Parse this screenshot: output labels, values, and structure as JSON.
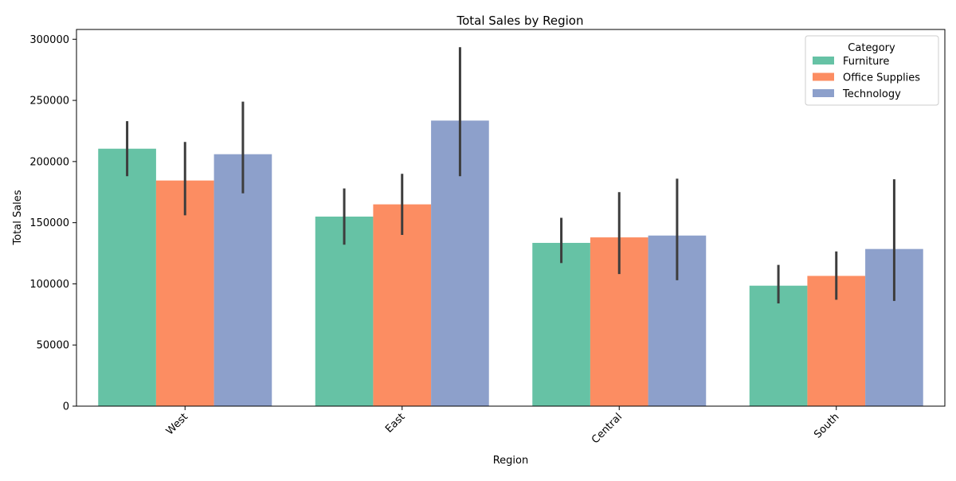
{
  "chart_data": {
    "type": "bar",
    "title": "Total Sales by Region",
    "xlabel": "Region",
    "ylabel": "Total Sales",
    "categories": [
      "West",
      "East",
      "Central",
      "South"
    ],
    "ylim": [
      0,
      308000
    ],
    "yticks": [
      0,
      50000,
      100000,
      150000,
      200000,
      250000,
      300000
    ],
    "series": [
      {
        "name": "Furniture",
        "color": "#66c2a5",
        "values": [
          210500,
          155000,
          133500,
          98500
        ],
        "err_low": [
          188000,
          132000,
          117000,
          84000
        ],
        "err_high": [
          233000,
          178000,
          154000,
          115500
        ]
      },
      {
        "name": "Office Supplies",
        "color": "#fc8d62",
        "values": [
          184500,
          165000,
          138000,
          106500
        ],
        "err_low": [
          156000,
          140000,
          108000,
          87000
        ],
        "err_high": [
          216000,
          190000,
          175000,
          126500
        ]
      },
      {
        "name": "Technology",
        "color": "#8da0cb",
        "values": [
          206000,
          233500,
          139500,
          128500
        ],
        "err_low": [
          174000,
          188000,
          103000,
          86000
        ],
        "err_high": [
          249000,
          293500,
          186000,
          185500
        ]
      }
    ],
    "legend": {
      "title": "Category",
      "position": "top-right"
    },
    "grid": false
  }
}
